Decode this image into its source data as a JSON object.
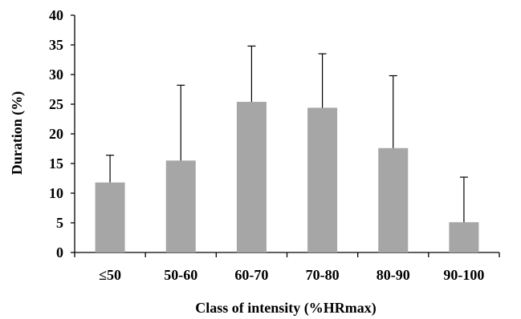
{
  "chart_data": {
    "type": "bar",
    "title": "",
    "xlabel": "Class of intensity (%HRmax)",
    "ylabel": "Duration (%)",
    "categories": [
      "≤50",
      "50-60",
      "60-70",
      "70-80",
      "80-90",
      "90-100"
    ],
    "values": [
      11.8,
      15.5,
      25.4,
      24.4,
      17.6,
      5.1
    ],
    "error_plus": [
      4.6,
      12.7,
      9.4,
      9.1,
      12.2,
      7.6
    ],
    "ylim": [
      0,
      40
    ],
    "yticks": [
      0,
      5,
      10,
      15,
      20,
      25,
      30,
      35,
      40
    ],
    "grid": false,
    "legend": "none",
    "bar_color": "#a6a6a6",
    "error_bar_color": "#000000",
    "axis_color": "#000000"
  }
}
